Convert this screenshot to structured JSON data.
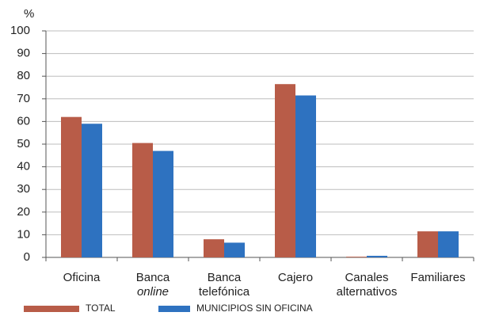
{
  "chart_data": {
    "type": "bar",
    "unit_label": "%",
    "categories": [
      [
        "Oficina"
      ],
      [
        "Banca",
        "online"
      ],
      [
        "Banca",
        "telefónica"
      ],
      [
        "Cajero"
      ],
      [
        "Canales",
        "alternativos"
      ],
      [
        "Familiares"
      ]
    ],
    "series": [
      {
        "name": "TOTAL",
        "color": "#b85c48",
        "values": [
          62,
          50.5,
          8,
          76.5,
          0.3,
          11.5
        ]
      },
      {
        "name": "MUNICIPIOS SIN OFICINA",
        "color": "#2e72c0",
        "values": [
          59,
          47,
          6.5,
          71.5,
          0.7,
          11.5
        ]
      }
    ],
    "ylim": [
      0,
      100
    ],
    "yticks": [
      0,
      10,
      20,
      30,
      40,
      50,
      60,
      70,
      80,
      90,
      100
    ],
    "grid": true
  }
}
